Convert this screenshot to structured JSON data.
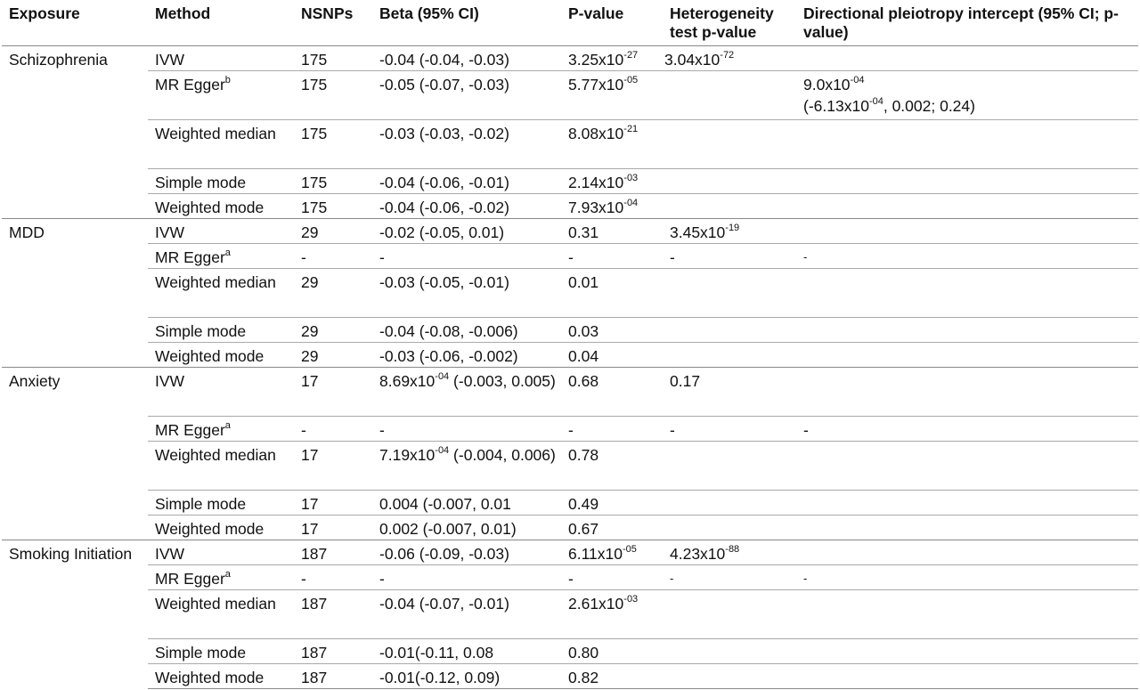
{
  "headers": [
    "Exposure",
    "Method",
    "NSNPs",
    "Beta (95% CI)",
    "P-value",
    "Heterogeneity test p-value",
    "Directional pleiotropy intercept (95% CI; p-value)"
  ],
  "groups": [
    {
      "exposure": "Schizophrenia",
      "rows": [
        {
          "method": "IVW",
          "nsnps": "175",
          "beta": "-0.04 (-0.04, -0.03)",
          "p_base": "3.25x10",
          "p_exp": "-27",
          "het_base": "3.04x10",
          "het_exp": "-72",
          "dp": ""
        },
        {
          "method": "MR Egger",
          "method_sup": "b",
          "nsnps": "175",
          "beta": "-0.05 (-0.07, -0.03)",
          "p_base": "5.77x10",
          "p_exp": "-05",
          "het_base": "",
          "het_exp": "",
          "dp_line1_base": "9.0x10",
          "dp_line1_exp": "-04",
          "dp_line2_pre": "(-6.13x10",
          "dp_line2_exp": "-04",
          "dp_line2_post": ", 0.002; 0.24)"
        },
        {
          "method": "Weighted median",
          "nsnps": "175",
          "beta": "-0.03 (-0.03, -0.02)",
          "p_base": "8.08x10",
          "p_exp": "-21"
        },
        {
          "method": "Simple mode",
          "nsnps": "175",
          "beta": "-0.04 (-0.06, -0.01)",
          "p_base": "2.14x10",
          "p_exp": "-03"
        },
        {
          "method": "Weighted mode",
          "nsnps": "175",
          "beta": "-0.04 (-0.06, -0.02)",
          "p_base": "7.93x10",
          "p_exp": "-04"
        }
      ]
    },
    {
      "exposure": "MDD",
      "rows": [
        {
          "method": "IVW",
          "nsnps": "29",
          "beta": "-0.02 (-0.05, 0.01)",
          "p": "0.31",
          "het_base": "3.45x10",
          "het_exp": "-19"
        },
        {
          "method": "MR Egger",
          "method_sup": "a",
          "nsnps": "-",
          "beta": "-",
          "p": "-",
          "het": "-",
          "dp": "-"
        },
        {
          "method": "Weighted median",
          "nsnps": "29",
          "beta": "-0.03 (-0.05, -0.01)",
          "p": "0.01"
        },
        {
          "method": "Simple mode",
          "nsnps": "29",
          "beta": "-0.04 (-0.08, -0.006)",
          "p": "0.03"
        },
        {
          "method": "Weighted mode",
          "nsnps": "29",
          "beta": "-0.03 (-0.06, -0.002)",
          "p": "0.04"
        }
      ]
    },
    {
      "exposure": "Anxiety",
      "rows": [
        {
          "method": "IVW",
          "nsnps": "17",
          "beta_base": "8.69x10",
          "beta_exp": "-04",
          "beta_post": " (-0.003, 0.005)",
          "p": "0.68",
          "het": "0.17"
        },
        {
          "method": "MR Egger",
          "method_sup": "a",
          "nsnps": "-",
          "beta": "-",
          "p": "-",
          "het": "-",
          "dp": "-"
        },
        {
          "method": "Weighted median",
          "nsnps": "17",
          "beta_base": "7.19x10",
          "beta_exp": "-04",
          "beta_post": " (-0.004, 0.006)",
          "p": "0.78"
        },
        {
          "method": "Simple mode",
          "nsnps": "17",
          "beta": "0.004 (-0.007, 0.01",
          "p": "0.49"
        },
        {
          "method": "Weighted mode",
          "nsnps": "17",
          "beta": "0.002 (-0.007, 0.01)",
          "p": "0.67"
        }
      ]
    },
    {
      "exposure": "Smoking Initiation",
      "rows": [
        {
          "method": "IVW",
          "nsnps": "187",
          "beta": "-0.06 (-0.09, -0.03)",
          "p_base": "6.11x10",
          "p_exp": "-05",
          "het_base": "4.23x10",
          "het_exp": "-88"
        },
        {
          "method": "MR Egger",
          "method_sup": "a",
          "nsnps": "-",
          "beta": "-",
          "p": "-",
          "het": "-",
          "dp": "-"
        },
        {
          "method": "Weighted median",
          "nsnps": "187",
          "beta": "-0.04 (-0.07, -0.01)",
          "p_base": "2.61x10",
          "p_exp": "-03"
        },
        {
          "method": "Simple mode",
          "nsnps": "187",
          "beta": "-0.01(-0.11, 0.08",
          "p": "0.80"
        },
        {
          "method": "Weighted mode",
          "nsnps": "187",
          "beta": "-0.01(-0.12, 0.09)",
          "p": "0.82"
        }
      ]
    }
  ]
}
